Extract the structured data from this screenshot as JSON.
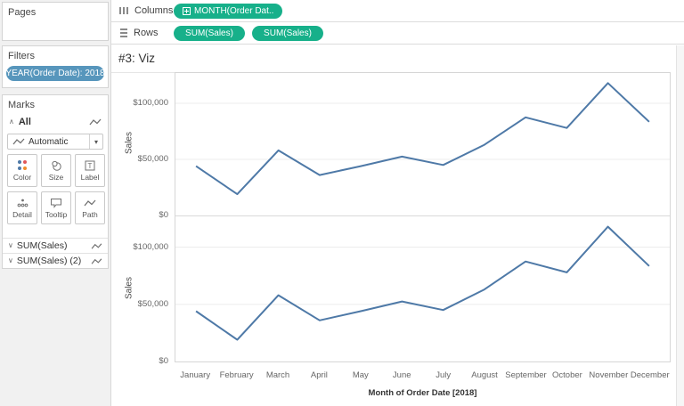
{
  "sidebar": {
    "pages_title": "Pages",
    "filters_title": "Filters",
    "filter_pill": "YEAR(Order Date): 2018",
    "marks_title": "Marks",
    "marks_all_label": "All",
    "marks_dropdown_value": "Automatic",
    "mark_buttons": [
      {
        "label": "Color"
      },
      {
        "label": "Size"
      },
      {
        "label": "Label"
      },
      {
        "label": "Detail"
      },
      {
        "label": "Tooltip"
      },
      {
        "label": "Path"
      }
    ],
    "sum_rows": [
      {
        "label": "SUM(Sales)"
      },
      {
        "label": "SUM(Sales) (2)"
      }
    ],
    "collapse_chevron": "∧",
    "expand_chevron": "∨",
    "dropdown_caret": "▾"
  },
  "shelves": {
    "columns_label": "Columns",
    "rows_label": "Rows",
    "columns_pills": [
      {
        "label": "MONTH(Order Dat.."
      }
    ],
    "rows_pills": [
      {
        "label": "SUM(Sales)"
      },
      {
        "label": "SUM(Sales)"
      }
    ]
  },
  "viz": {
    "title": "#3: Viz"
  },
  "chart_data": {
    "type": "line",
    "x": [
      "January",
      "February",
      "March",
      "April",
      "May",
      "June",
      "July",
      "August",
      "September",
      "October",
      "November",
      "December"
    ],
    "xlabel": "Month of Order Date [2018]",
    "ylabel": "Sales",
    "ylim": [
      0,
      127000
    ],
    "grid": "horizontal",
    "legend": "none",
    "yticks": [
      {
        "value": 0,
        "label": "$0"
      },
      {
        "value": 50000,
        "label": "$50,000"
      },
      {
        "value": 100000,
        "label": "$100,000"
      }
    ],
    "series": [
      {
        "name": "SUM(Sales)",
        "values": [
          44000,
          19000,
          58000,
          36000,
          44000,
          52500,
          45000,
          63000,
          87500,
          78000,
          118000,
          83500
        ]
      },
      {
        "name": "SUM(Sales) (2)",
        "values": [
          44000,
          19000,
          58000,
          36000,
          44000,
          52500,
          45000,
          63000,
          87500,
          78000,
          118000,
          83500
        ]
      }
    ]
  },
  "colors": {
    "line": "#4e79a7",
    "pill_green": "#17b08a",
    "pill_blue": "#5796bc",
    "gridline": "#ececec",
    "color_icon_dots": [
      "#4e79a7",
      "#e15759",
      "#4e79a7",
      "#f28e2b"
    ]
  }
}
